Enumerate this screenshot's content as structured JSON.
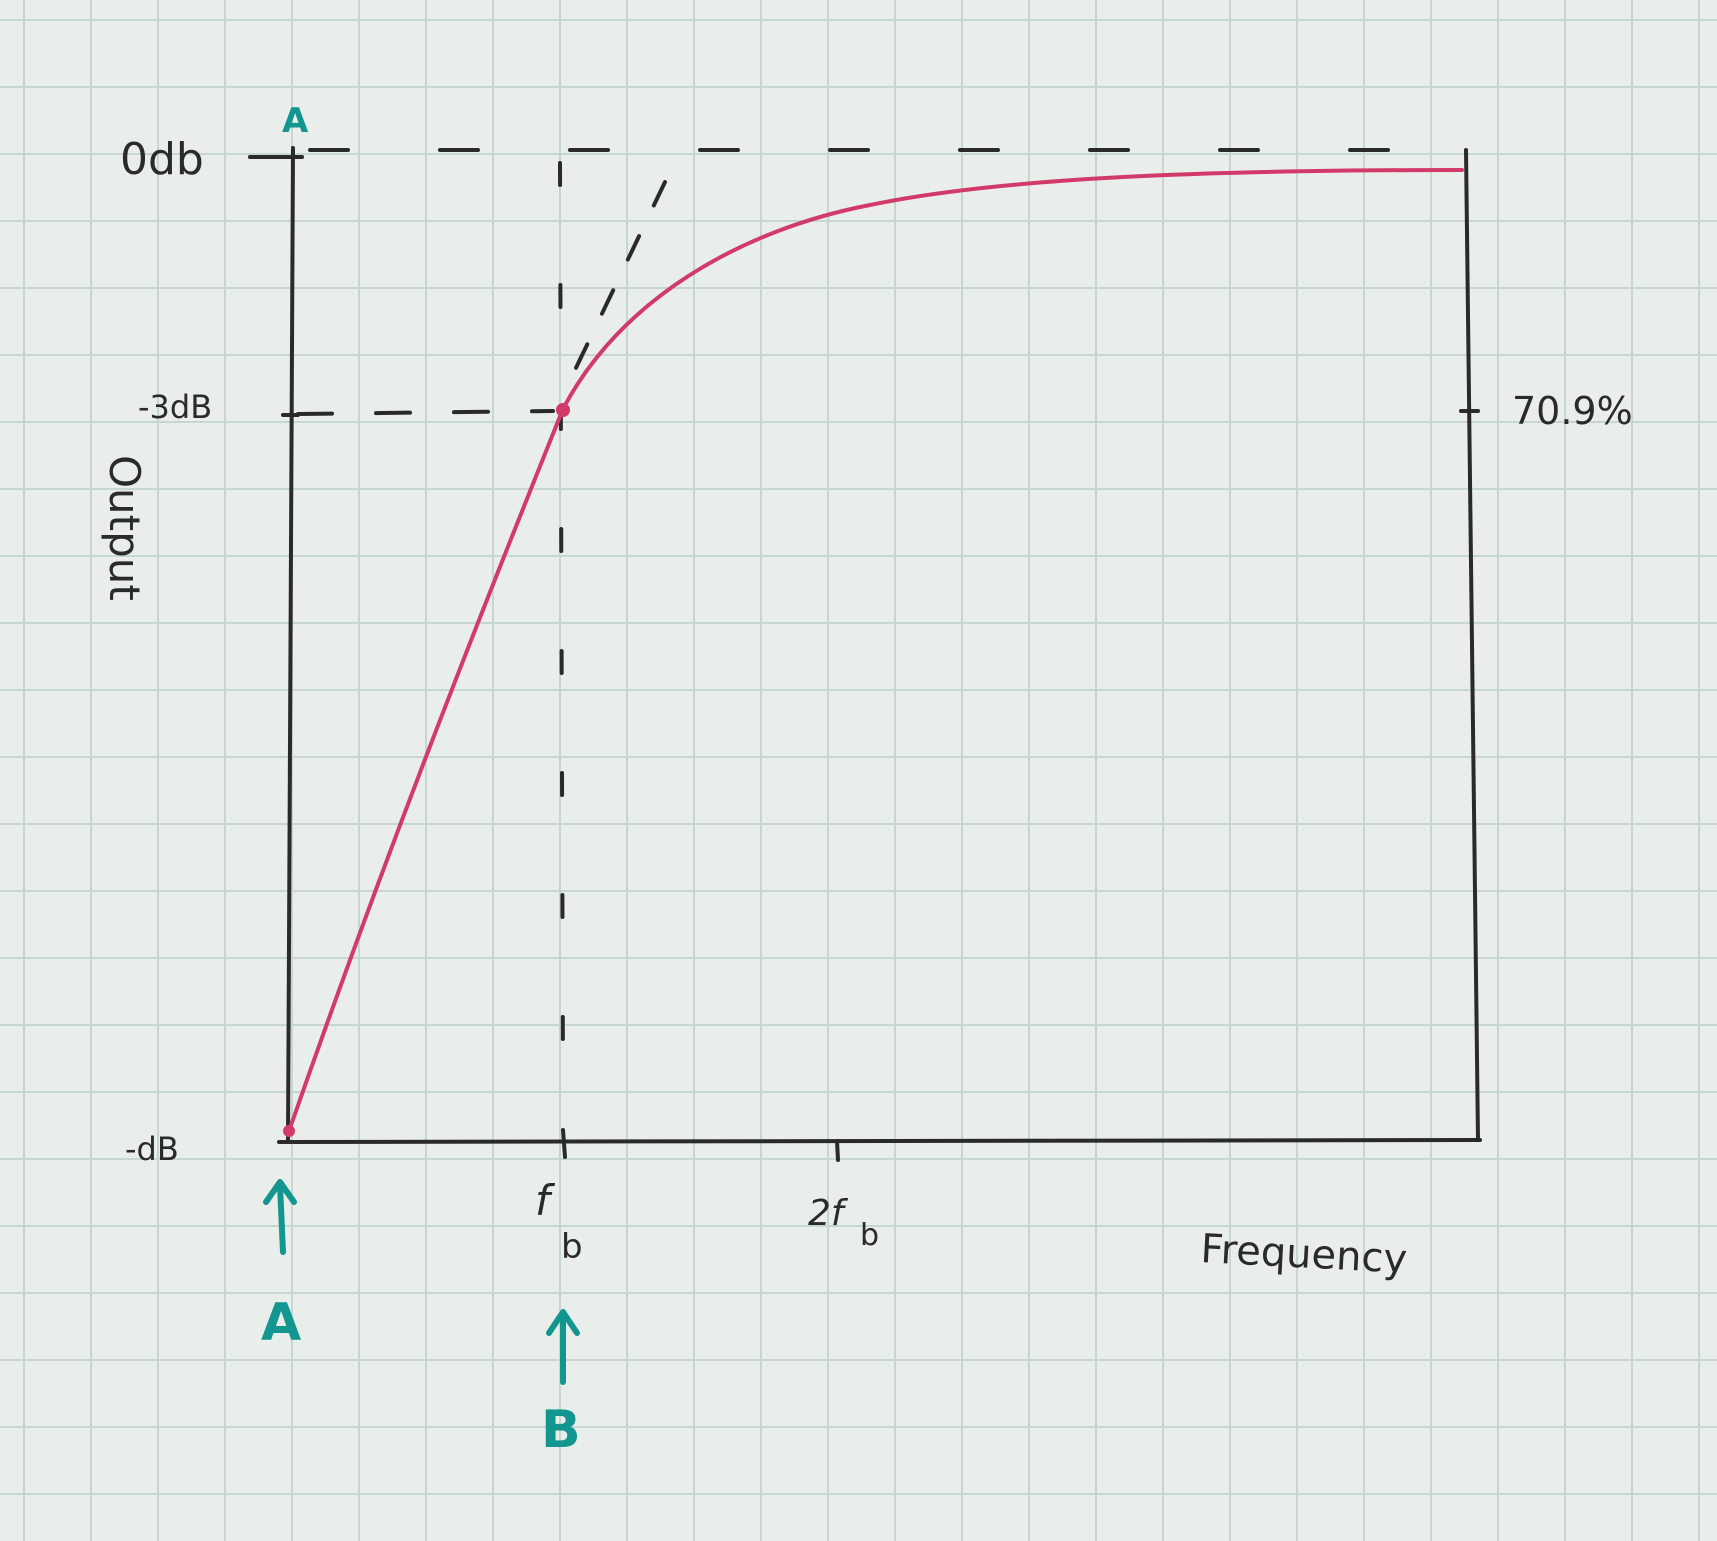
{
  "labels": {
    "y_top": "0db",
    "y_mid": "-3dB",
    "y_bottom": "-dB",
    "y_axis": "Output",
    "right_mid": "70.9%",
    "x_fb_main": "f",
    "x_fb_sub": "b",
    "x_2fb_main": "2f",
    "x_2fb_sub": "b",
    "x_axis": "Frequency",
    "marker_top": "A",
    "marker_a": "A",
    "marker_b": "B"
  },
  "colors": {
    "paper": "#e9eeeb",
    "grid": "#c6d6d2",
    "ink": "#2a2a2a",
    "curve": "#d23a6a",
    "annotation": "#12968f"
  }
}
